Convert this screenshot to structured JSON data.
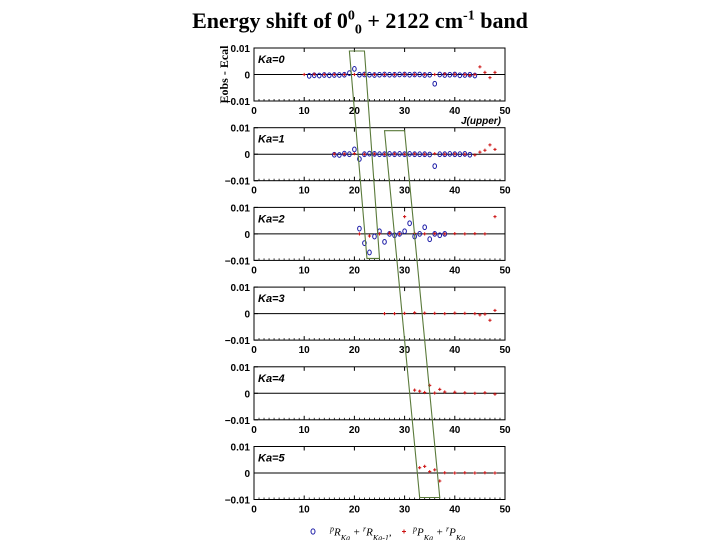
{
  "title": {
    "text_a": "Energy shift of 0",
    "sup1": "0",
    "sub1": "0",
    "text_b": " + 2122 cm",
    "sup2": "-1",
    "text_c": " band"
  },
  "chart_data": {
    "type": "scatter",
    "ylabel": "Eobs - Ecal",
    "xlabel": "J(upper)",
    "xlim": [
      0,
      50
    ],
    "ylim": [
      -0.01,
      0.01
    ],
    "x_ticks": [
      "0",
      "10",
      "20",
      "30",
      "40",
      "50"
    ],
    "y_ticks": [
      "0.01",
      "0",
      "-0.01"
    ],
    "y_ticks_display": [
      "0.01",
      "0",
      "−0.01"
    ],
    "grid": false,
    "legend": {
      "position": "bottom",
      "entries": [
        {
          "marker": "o",
          "label": "pRKa + rRKa-1",
          "color": "#1a1aa6"
        },
        {
          "marker": "+",
          "label": "pPKa + rPKa",
          "color": "#cc1111"
        }
      ]
    },
    "colors": {
      "R": "#1a1aa6",
      "P": "#cc1111",
      "band": "#5a7a3a"
    },
    "panels": [
      {
        "label": "Ka=0",
        "series": [
          {
            "name": "R",
            "x": [
              11,
              12,
              13,
              14,
              15,
              16,
              17,
              18,
              19,
              20,
              21,
              22,
              23,
              24,
              25,
              26,
              27,
              28,
              29,
              30,
              31,
              32,
              33,
              34,
              35,
              36,
              37,
              38,
              39,
              40,
              41,
              42,
              43,
              44
            ],
            "y": [
              -0.0005,
              -0.0003,
              -0.0004,
              -0.0002,
              -0.0003,
              -0.0002,
              -0.0002,
              -0.0001,
              0.0005,
              0.0021,
              -0.0001,
              0.0,
              -0.0001,
              -0.0002,
              -0.0001,
              0.0,
              -0.0001,
              -0.0001,
              0.0,
              0.0,
              -0.0001,
              0.0,
              0.0,
              -0.0002,
              -0.0001,
              -0.0035,
              0.0,
              -0.0002,
              -0.0001,
              0.0,
              -0.0003,
              -0.0002,
              -0.0001,
              -0.0004
            ]
          },
          {
            "name": "P",
            "x": [
              10,
              12,
              14,
              16,
              18,
              20,
              22,
              24,
              26,
              28,
              30,
              32,
              34,
              36,
              38,
              40,
              42,
              43,
              44,
              45,
              46,
              47,
              48
            ],
            "y": [
              0.0,
              0.0001,
              0.0,
              0.0,
              0.0,
              0.0,
              0.0001,
              0.0,
              0.0,
              0.0,
              0.0001,
              0.0,
              0.0,
              0.0,
              0.0002,
              0.0001,
              0.0,
              -0.0003,
              0.0,
              0.0029,
              0.0008,
              -0.0012,
              0.0008
            ]
          }
        ]
      },
      {
        "label": "Ka=1",
        "series": [
          {
            "name": "R",
            "x": [
              16,
              17,
              18,
              19,
              20,
              21,
              22,
              23,
              24,
              25,
              26,
              27,
              28,
              29,
              30,
              31,
              32,
              33,
              34,
              35,
              36,
              37,
              38,
              39,
              40,
              41,
              42,
              43
            ],
            "y": [
              -0.0002,
              -0.0003,
              0.0002,
              0.0,
              0.0018,
              -0.0018,
              0.0,
              0.0002,
              0.0001,
              0.0,
              0.0,
              0.0001,
              0.0,
              0.0001,
              0.0,
              0.0001,
              0.0,
              0.0,
              0.0,
              -0.0001,
              -0.0045,
              0.0,
              0.0,
              0.0001,
              0.0,
              0.0,
              0.0001,
              -0.0002
            ]
          },
          {
            "name": "P",
            "x": [
              16,
              18,
              20,
              22,
              24,
              26,
              28,
              30,
              32,
              34,
              36,
              38,
              40,
              42,
              44,
              45,
              46,
              47,
              48
            ],
            "y": [
              0.0001,
              0.0001,
              0.0002,
              0.0,
              0.0001,
              0.0,
              0.0001,
              0.0,
              0.0001,
              0.0,
              0.0002,
              0.0,
              0.0001,
              0.0,
              -0.0003,
              0.0008,
              0.0015,
              0.0035,
              0.0018
            ]
          }
        ]
      },
      {
        "label": "Ka=2",
        "series": [
          {
            "name": "R",
            "x": [
              21,
              22,
              23,
              24,
              25,
              26,
              27,
              28,
              29,
              30,
              31,
              32,
              33,
              34,
              35,
              36,
              37,
              38
            ],
            "y": [
              0.002,
              -0.0035,
              -0.007,
              -0.001,
              0.001,
              -0.003,
              0.0,
              -0.0005,
              0.0,
              0.001,
              0.004,
              -0.001,
              0.0,
              0.0025,
              -0.002,
              0.0,
              -0.0005,
              0.0
            ]
          },
          {
            "name": "P",
            "x": [
              21,
              23,
              25,
              27,
              29,
              30,
              32,
              34,
              36,
              38,
              40,
              42,
              44,
              46,
              48
            ],
            "y": [
              0.0,
              -0.0008,
              0.0,
              0.0003,
              0.0,
              0.0065,
              0.0002,
              0.0,
              0.0001,
              0.0,
              0.0001,
              0.0,
              0.0001,
              0.0,
              0.0065
            ]
          }
        ]
      },
      {
        "label": "Ka=3",
        "series": [
          {
            "name": "P",
            "x": [
              26,
              28,
              30,
              32,
              34,
              36,
              38,
              40,
              42,
              44,
              45,
              46,
              47,
              48
            ],
            "y": [
              0.0,
              0.0,
              0.0001,
              0.0003,
              0.0002,
              0.0001,
              0.0,
              0.0002,
              0.0001,
              0.0,
              -0.0005,
              -0.0002,
              -0.0025,
              0.0012
            ]
          }
        ]
      },
      {
        "label": "Ka=4",
        "series": [
          {
            "name": "P",
            "x": [
              32,
              33,
              34,
              35,
              36,
              37,
              38,
              40,
              42,
              44,
              46,
              48
            ],
            "y": [
              0.0012,
              0.0008,
              0.0003,
              0.003,
              0.0001,
              0.0015,
              0.0005,
              0.0004,
              0.0002,
              0.0,
              0.0002,
              -0.0003
            ]
          }
        ]
      },
      {
        "label": "Ka=5",
        "series": [
          {
            "name": "P",
            "x": [
              33,
              34,
              35,
              36,
              37,
              38,
              40,
              42,
              44,
              46,
              48
            ],
            "y": [
              0.002,
              0.0025,
              0.0005,
              0.0012,
              -0.003,
              0.0001,
              0.0,
              0.0001,
              0.0,
              0.0001,
              0.0
            ]
          }
        ]
      }
    ],
    "annotations": [
      {
        "type": "band",
        "from_panel": 0,
        "x_top_range": [
          19,
          22
        ],
        "to_panel": 2,
        "x_bottom_range": [
          22.5,
          25
        ]
      },
      {
        "type": "band",
        "from_panel": 1,
        "x_top_range": [
          26,
          30
        ],
        "to_panel": 5,
        "x_bottom_range": [
          33,
          37
        ]
      }
    ]
  }
}
